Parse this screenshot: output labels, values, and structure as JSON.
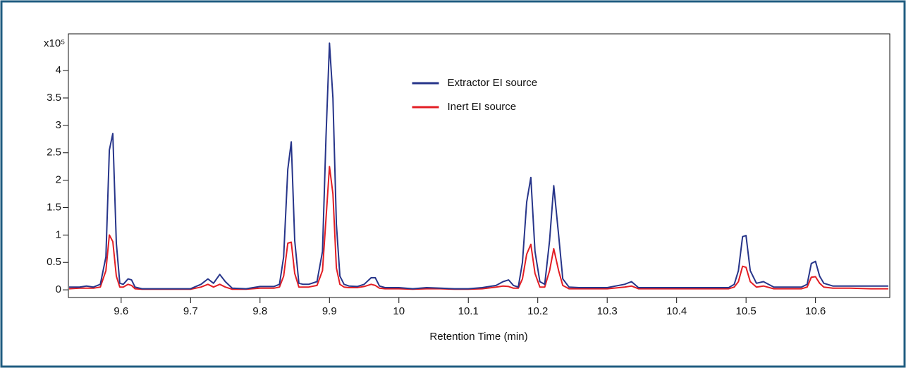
{
  "chart_data": {
    "type": "line",
    "x_label": "Retention Time (min)",
    "y_unit": "x10⁵",
    "x": [
      9.525,
      9.54,
      9.55,
      9.56,
      9.57,
      9.578,
      9.583,
      9.588,
      9.593,
      9.598,
      9.603,
      9.61,
      9.615,
      9.62,
      9.63,
      9.65,
      9.7,
      9.715,
      9.725,
      9.733,
      9.742,
      9.75,
      9.76,
      9.78,
      9.8,
      9.82,
      9.828,
      9.834,
      9.84,
      9.845,
      9.85,
      9.856,
      9.862,
      9.87,
      9.882,
      9.89,
      9.895,
      9.9,
      9.905,
      9.91,
      9.915,
      9.921,
      9.928,
      9.94,
      9.95,
      9.96,
      9.966,
      9.972,
      9.98,
      10.0,
      10.02,
      10.04,
      10.06,
      10.08,
      10.1,
      10.12,
      10.14,
      10.15,
      10.158,
      10.165,
      10.172,
      10.178,
      10.184,
      10.19,
      10.196,
      10.203,
      10.21,
      10.217,
      10.223,
      10.23,
      10.236,
      10.245,
      10.26,
      10.3,
      10.325,
      10.335,
      10.345,
      10.4,
      10.46,
      10.475,
      10.483,
      10.489,
      10.495,
      10.5,
      10.506,
      10.515,
      10.525,
      10.54,
      10.58,
      10.588,
      10.594,
      10.6,
      10.606,
      10.612,
      10.625,
      10.65,
      10.68,
      10.705
    ],
    "series": [
      {
        "name": "Extractor EI source",
        "color": "#27358a",
        "values": [
          0.05,
          0.05,
          0.07,
          0.05,
          0.1,
          0.6,
          2.55,
          2.85,
          0.85,
          0.12,
          0.1,
          0.2,
          0.18,
          0.05,
          0.02,
          0.02,
          0.02,
          0.1,
          0.2,
          0.12,
          0.28,
          0.15,
          0.03,
          0.02,
          0.06,
          0.06,
          0.1,
          0.6,
          2.2,
          2.7,
          0.9,
          0.12,
          0.1,
          0.1,
          0.15,
          0.7,
          2.8,
          4.5,
          3.5,
          1.2,
          0.25,
          0.1,
          0.07,
          0.06,
          0.1,
          0.22,
          0.22,
          0.07,
          0.04,
          0.04,
          0.02,
          0.04,
          0.03,
          0.02,
          0.02,
          0.04,
          0.08,
          0.15,
          0.18,
          0.08,
          0.05,
          0.5,
          1.6,
          2.05,
          0.7,
          0.15,
          0.1,
          0.9,
          1.9,
          1.0,
          0.2,
          0.05,
          0.04,
          0.04,
          0.1,
          0.15,
          0.04,
          0.04,
          0.04,
          0.04,
          0.1,
          0.35,
          0.97,
          0.99,
          0.35,
          0.12,
          0.15,
          0.05,
          0.05,
          0.1,
          0.48,
          0.52,
          0.25,
          0.12,
          0.07,
          0.07,
          0.07,
          0.07
        ]
      },
      {
        "name": "Inert EI source",
        "color": "#e31e24",
        "values": [
          0.02,
          0.03,
          0.03,
          0.03,
          0.05,
          0.35,
          1.0,
          0.88,
          0.25,
          0.05,
          0.05,
          0.1,
          0.08,
          0.02,
          0.01,
          0.01,
          0.01,
          0.05,
          0.1,
          0.05,
          0.1,
          0.05,
          0.01,
          0.01,
          0.03,
          0.03,
          0.05,
          0.25,
          0.85,
          0.87,
          0.3,
          0.05,
          0.05,
          0.05,
          0.08,
          0.35,
          1.3,
          2.25,
          1.75,
          0.4,
          0.1,
          0.05,
          0.04,
          0.04,
          0.06,
          0.1,
          0.08,
          0.03,
          0.02,
          0.02,
          0.01,
          0.02,
          0.02,
          0.01,
          0.01,
          0.02,
          0.05,
          0.07,
          0.06,
          0.03,
          0.03,
          0.2,
          0.65,
          0.83,
          0.3,
          0.05,
          0.05,
          0.35,
          0.75,
          0.35,
          0.08,
          0.02,
          0.02,
          0.02,
          0.05,
          0.07,
          0.02,
          0.02,
          0.02,
          0.02,
          0.05,
          0.15,
          0.43,
          0.41,
          0.15,
          0.05,
          0.07,
          0.02,
          0.02,
          0.05,
          0.23,
          0.24,
          0.12,
          0.05,
          0.03,
          0.03,
          0.02,
          0.02
        ]
      }
    ],
    "xlim": [
      9.524,
      10.707
    ],
    "ylim": [
      -0.14,
      4.67
    ],
    "xticks": [
      9.6,
      9.7,
      9.8,
      9.9,
      10,
      10.1,
      10.2,
      10.3,
      10.4,
      10.5,
      10.6
    ],
    "yticks": [
      0,
      0.5,
      1,
      1.5,
      2,
      2.5,
      3,
      3.5,
      4
    ],
    "legend": "upper center"
  }
}
